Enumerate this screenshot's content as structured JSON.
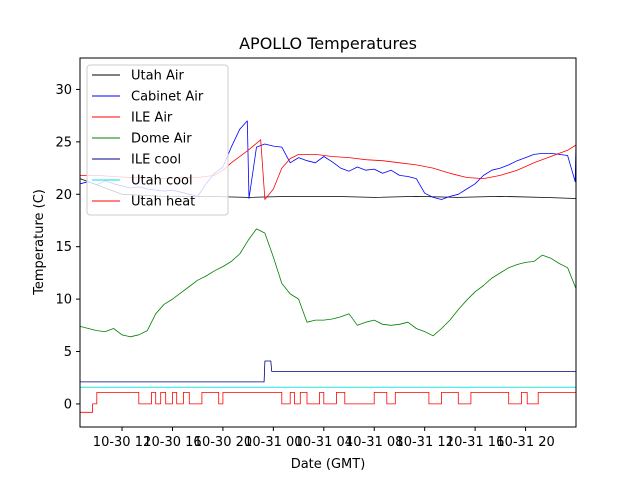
{
  "chart_data": {
    "type": "line",
    "title": "APOLLO Temperatures",
    "xlabel": "Date (GMT)",
    "ylabel": "Temperature (C)",
    "xlim_hours": [
      0,
      59
    ],
    "ylim": [
      -2.2,
      33
    ],
    "yticks": [
      0,
      5,
      10,
      15,
      20,
      25,
      30
    ],
    "xticks": [
      {
        "h": 5,
        "label": "10-30 12"
      },
      {
        "h": 11,
        "label": "10-30 16"
      },
      {
        "h": 17,
        "label": "10-30 20"
      },
      {
        "h": 23,
        "label": "10-31 00"
      },
      {
        "h": 29,
        "label": "10-31 04"
      },
      {
        "h": 35,
        "label": "10-31 08"
      },
      {
        "h": 41,
        "label": "10-31 12"
      },
      {
        "h": 47,
        "label": "10-31 16"
      },
      {
        "h": 53,
        "label": "10-31 20"
      }
    ],
    "legend_position": "upper-left",
    "series": [
      {
        "name": "Utah Air",
        "color": "#000000",
        "x": [
          0,
          5,
          10,
          15,
          20,
          25,
          30,
          35,
          40,
          45,
          50,
          55,
          59
        ],
        "y": [
          21.5,
          20.0,
          19.8,
          19.8,
          19.7,
          19.8,
          19.8,
          19.7,
          19.8,
          19.7,
          19.8,
          19.7,
          19.6
        ]
      },
      {
        "name": "Cabinet Air",
        "color": "#0000ff",
        "x": [
          0,
          1,
          2,
          3,
          4,
          5,
          6,
          7,
          8,
          9,
          10,
          11,
          12,
          13,
          14,
          15,
          16,
          17,
          18,
          19,
          19.9,
          20.1,
          21,
          22,
          23,
          24,
          25,
          26,
          27,
          28,
          29,
          30,
          31,
          32,
          33,
          34,
          35,
          36,
          37,
          38,
          39,
          40,
          41,
          42,
          43,
          44,
          45,
          46,
          47,
          48,
          49,
          50,
          51,
          52,
          53,
          54,
          55,
          56,
          57,
          58,
          58.9,
          59
        ],
        "y": [
          21.0,
          21.2,
          20.9,
          21.3,
          21.0,
          20.8,
          20.6,
          20.7,
          20.5,
          20.4,
          20.3,
          20.4,
          20.2,
          20.0,
          19.8,
          21.0,
          22.0,
          22.6,
          24.5,
          26.2,
          27.0,
          19.6,
          24.5,
          24.8,
          24.6,
          24.5,
          23.0,
          23.5,
          23.2,
          23.0,
          23.6,
          23.1,
          22.5,
          22.2,
          22.6,
          22.3,
          22.4,
          22.0,
          22.3,
          21.8,
          21.7,
          21.5,
          20.1,
          19.7,
          19.5,
          19.8,
          20.0,
          20.5,
          21.0,
          21.8,
          22.3,
          22.5,
          22.8,
          23.2,
          23.5,
          23.8,
          23.9,
          23.9,
          23.8,
          23.7,
          21.2,
          25.2
        ]
      },
      {
        "name": "ILE Air",
        "color": "#ff0000",
        "x": [
          0,
          2,
          4,
          6,
          8,
          10,
          12,
          14,
          16,
          17,
          18,
          20,
          21.5,
          22,
          23,
          24,
          25,
          26,
          28,
          30,
          32,
          34,
          36,
          38,
          40,
          42,
          44,
          46,
          48,
          50,
          52,
          54,
          56,
          58,
          59
        ],
        "y": [
          21.8,
          21.8,
          21.7,
          21.6,
          21.6,
          21.5,
          21.6,
          21.6,
          21.8,
          22.3,
          23.0,
          24.2,
          25.2,
          19.5,
          20.5,
          22.5,
          23.4,
          23.8,
          23.8,
          23.6,
          23.5,
          23.3,
          23.2,
          23.0,
          22.8,
          22.5,
          22.0,
          21.6,
          21.5,
          21.8,
          22.3,
          23.0,
          23.6,
          24.2,
          24.7
        ]
      },
      {
        "name": "Dome Air",
        "color": "#008000",
        "x": [
          0,
          2,
          3,
          4,
          5,
          6,
          7,
          8,
          9,
          10,
          11,
          12,
          13,
          14,
          15,
          16,
          17,
          18,
          19,
          20,
          21,
          22,
          23,
          24,
          25,
          26,
          27,
          28,
          29,
          30,
          31,
          32,
          33,
          34,
          35,
          36,
          37,
          38,
          39,
          40,
          41,
          42,
          43,
          44,
          45,
          46,
          47,
          48,
          49,
          50,
          51,
          52,
          53,
          54,
          55,
          56,
          57,
          58,
          59
        ],
        "y": [
          7.4,
          7.0,
          6.9,
          7.2,
          6.6,
          6.4,
          6.6,
          7.0,
          8.6,
          9.5,
          10.0,
          10.6,
          11.2,
          11.8,
          12.2,
          12.7,
          13.1,
          13.6,
          14.3,
          15.6,
          16.7,
          16.3,
          14.0,
          11.5,
          10.5,
          10.0,
          7.8,
          8.0,
          8.0,
          8.1,
          8.3,
          8.6,
          7.5,
          7.8,
          8.0,
          7.6,
          7.5,
          7.6,
          7.8,
          7.2,
          6.9,
          6.5,
          7.2,
          8.0,
          9.0,
          9.9,
          10.7,
          11.3,
          12.0,
          12.5,
          13.0,
          13.3,
          13.5,
          13.6,
          14.2,
          13.9,
          13.4,
          13.0,
          11.0
        ]
      },
      {
        "name": "ILE cool",
        "color": "#000080",
        "x": [
          0,
          21.9,
          22.0,
          22.7,
          22.8,
          59
        ],
        "y": [
          2.1,
          2.1,
          4.1,
          4.1,
          3.1,
          3.1
        ]
      },
      {
        "name": "Utah cool",
        "color": "#00e0e0",
        "x": [
          0,
          59
        ],
        "y": [
          1.6,
          1.6
        ]
      },
      {
        "name": "Utah heat",
        "color": "#ff0000",
        "x": [
          0,
          1.5,
          1.5,
          2.0,
          2.0,
          7.0,
          7.0,
          8.5,
          8.5,
          9.0,
          9.0,
          9.6,
          9.6,
          10.2,
          10.2,
          11.0,
          11.0,
          11.5,
          11.5,
          12.3,
          12.3,
          13.0,
          13.0,
          14.5,
          14.5,
          16.5,
          16.5,
          17.0,
          17.0,
          24.0,
          24.0,
          25.0,
          25.0,
          25.5,
          25.5,
          26.2,
          26.2,
          27.0,
          27.0,
          28.5,
          28.5,
          29.0,
          29.0,
          30.5,
          30.5,
          31.5,
          31.5,
          35.0,
          35.0,
          36.5,
          36.5,
          37.5,
          37.5,
          41.5,
          41.5,
          43.0,
          43.0,
          45.0,
          45.0,
          46.5,
          46.5,
          51.0,
          51.0,
          52.5,
          52.5,
          53.2,
          53.2,
          54.5,
          54.5,
          59.0
        ],
        "y": [
          -0.8,
          -0.8,
          0.0,
          0.0,
          1.1,
          1.1,
          0.0,
          0.0,
          1.1,
          1.1,
          0.0,
          0.0,
          1.1,
          1.1,
          0.0,
          0.0,
          1.1,
          1.1,
          0.0,
          0.0,
          1.1,
          1.1,
          0.0,
          0.0,
          1.1,
          1.1,
          0.0,
          0.0,
          1.1,
          1.1,
          0.0,
          0.0,
          1.1,
          1.1,
          0.0,
          0.0,
          1.1,
          1.1,
          0.0,
          0.0,
          1.1,
          1.1,
          0.0,
          0.0,
          1.1,
          1.1,
          0.0,
          0.0,
          1.1,
          1.1,
          0.0,
          0.0,
          1.1,
          1.1,
          0.0,
          0.0,
          1.1,
          1.1,
          0.0,
          0.0,
          1.1,
          1.1,
          0.0,
          0.0,
          1.1,
          1.1,
          0.0,
          0.0,
          1.1,
          1.1
        ]
      }
    ]
  }
}
